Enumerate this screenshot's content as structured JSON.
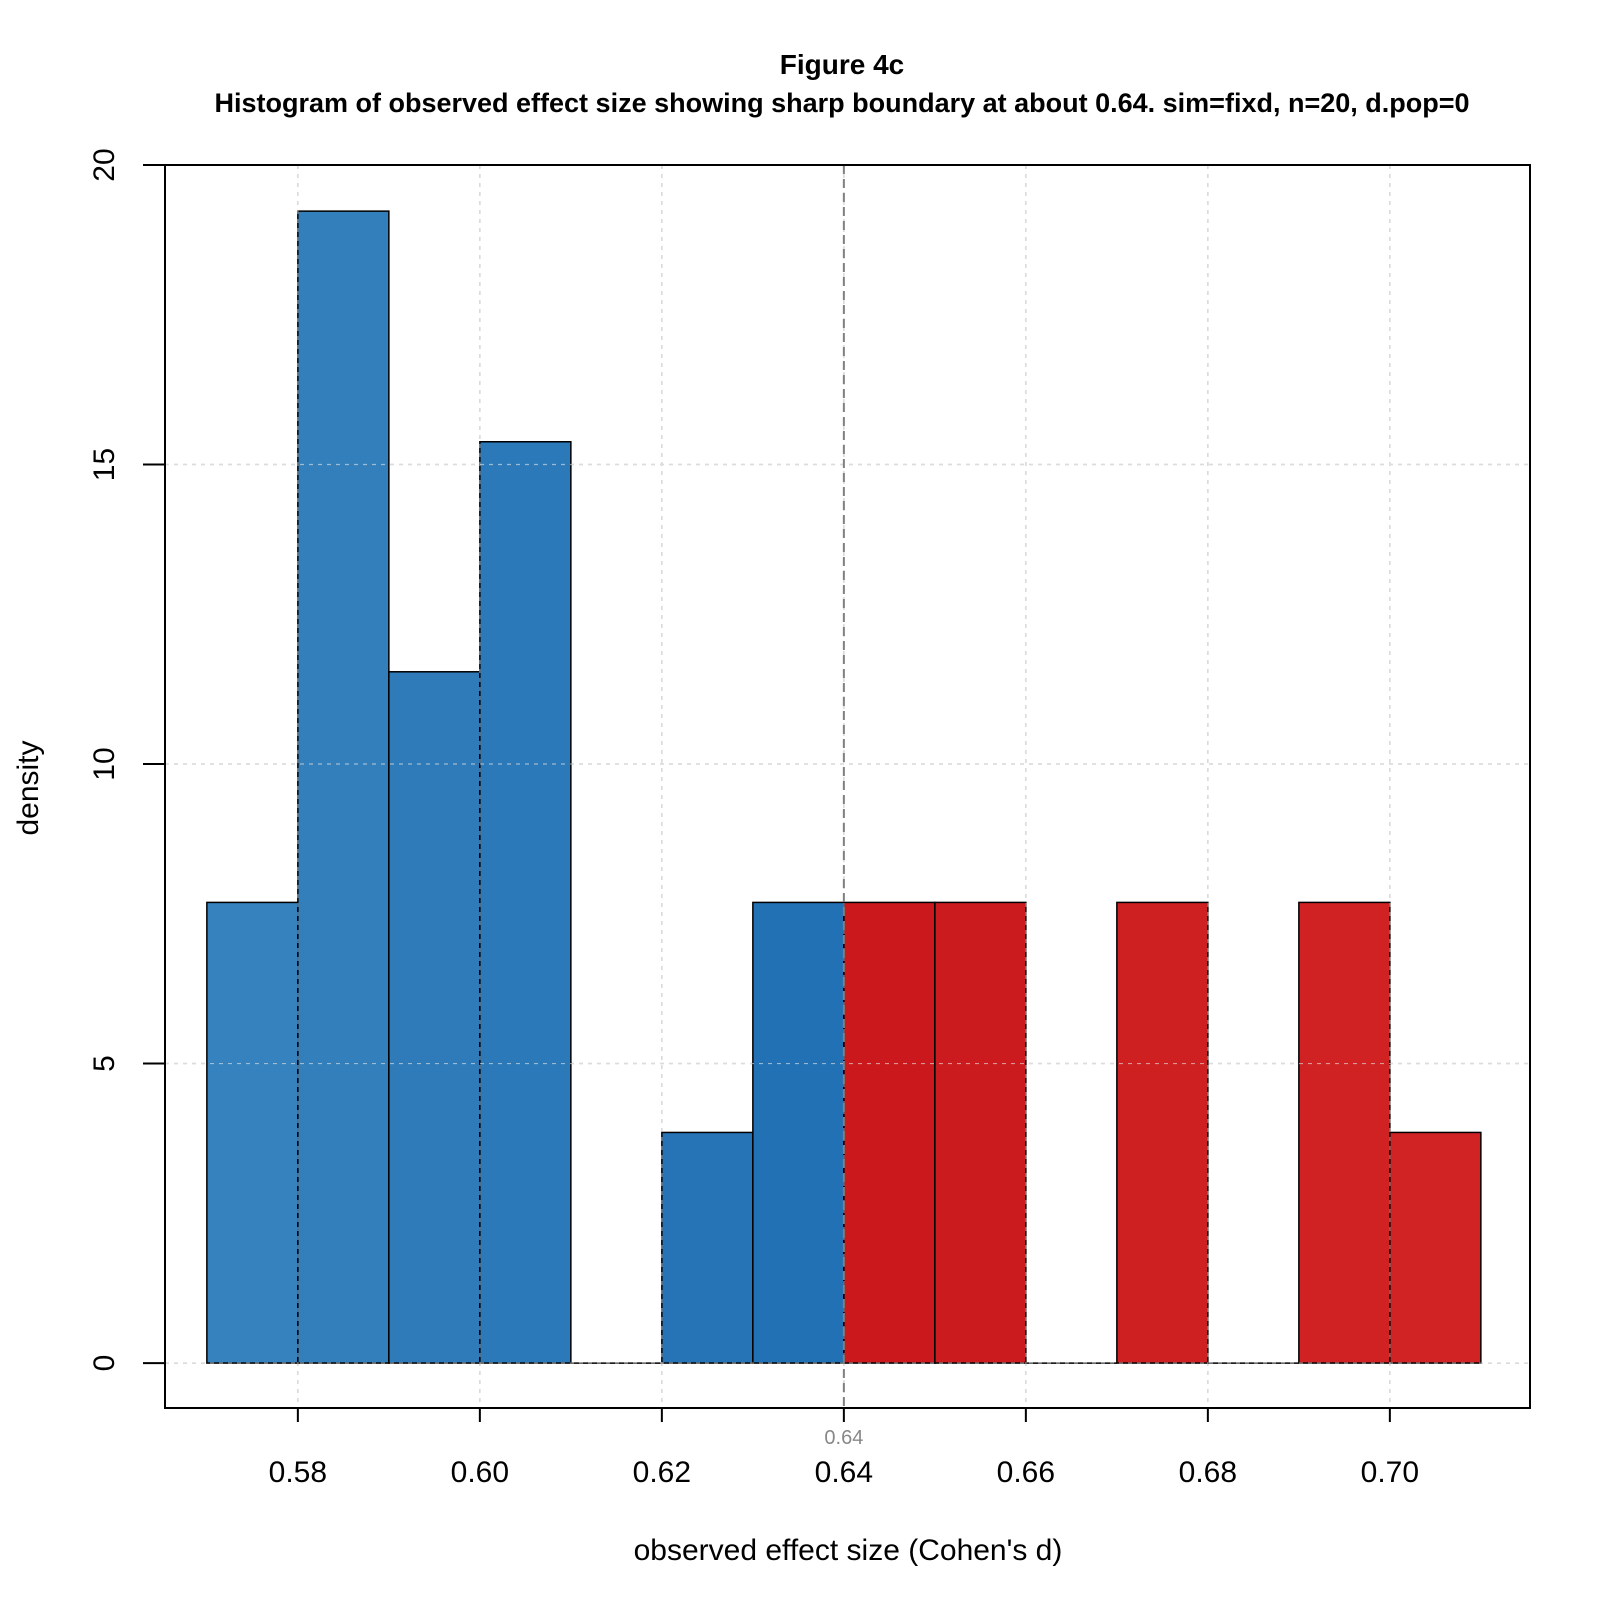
{
  "chart_data": {
    "type": "bar",
    "subtype": "histogram",
    "title": "Figure 4c",
    "subtitle": "Histogram of observed effect size showing sharp boundary at about 0.64. sim=fixd, n=20, d.pop=0",
    "xlabel": "observed effect size (Cohen's d)",
    "ylabel": "density",
    "xlim": [
      0.5654,
      0.7154
    ],
    "ylim": [
      -0.75,
      20
    ],
    "x_ticks": [
      0.58,
      0.6,
      0.62,
      0.64,
      0.66,
      0.68,
      0.7
    ],
    "x_tick_labels": [
      "0.58",
      "0.60",
      "0.62",
      "0.64",
      "0.66",
      "0.68",
      "0.70"
    ],
    "y_ticks": [
      0,
      5,
      10,
      15,
      20
    ],
    "y_tick_labels": [
      "0",
      "5",
      "10",
      "15",
      "20"
    ],
    "grid": true,
    "reference_line": {
      "x": 0.64,
      "label": "0.64",
      "style": "dashed",
      "color": "#808080"
    },
    "bins": [
      {
        "x0": 0.57,
        "x1": 0.58,
        "density": 7.69,
        "color": "#3682be"
      },
      {
        "x0": 0.58,
        "x1": 0.59,
        "density": 19.23,
        "color": "#327fbb"
      },
      {
        "x0": 0.59,
        "x1": 0.6,
        "density": 11.54,
        "color": "#2f7bba"
      },
      {
        "x0": 0.6,
        "x1": 0.61,
        "density": 15.38,
        "color": "#2c79b9"
      },
      {
        "x0": 0.61,
        "x1": 0.62,
        "density": 0,
        "color": "#2a76b6"
      },
      {
        "x0": 0.62,
        "x1": 0.63,
        "density": 3.85,
        "color": "#2674b5"
      },
      {
        "x0": 0.63,
        "x1": 0.64,
        "density": 7.69,
        "color": "#2271b4"
      },
      {
        "x0": 0.64,
        "x1": 0.65,
        "density": 7.69,
        "color": "#cb181d"
      },
      {
        "x0": 0.65,
        "x1": 0.66,
        "density": 7.69,
        "color": "#cc1b1f"
      },
      {
        "x0": 0.66,
        "x1": 0.67,
        "density": 0,
        "color": "#cd1e20"
      },
      {
        "x0": 0.67,
        "x1": 0.68,
        "density": 7.69,
        "color": "#ce1f21"
      },
      {
        "x0": 0.68,
        "x1": 0.69,
        "density": 0,
        "color": "#cf2022"
      },
      {
        "x0": 0.69,
        "x1": 0.7,
        "density": 7.69,
        "color": "#d02223"
      },
      {
        "x0": 0.7,
        "x1": 0.71,
        "density": 3.85,
        "color": "#d12324"
      }
    ]
  }
}
